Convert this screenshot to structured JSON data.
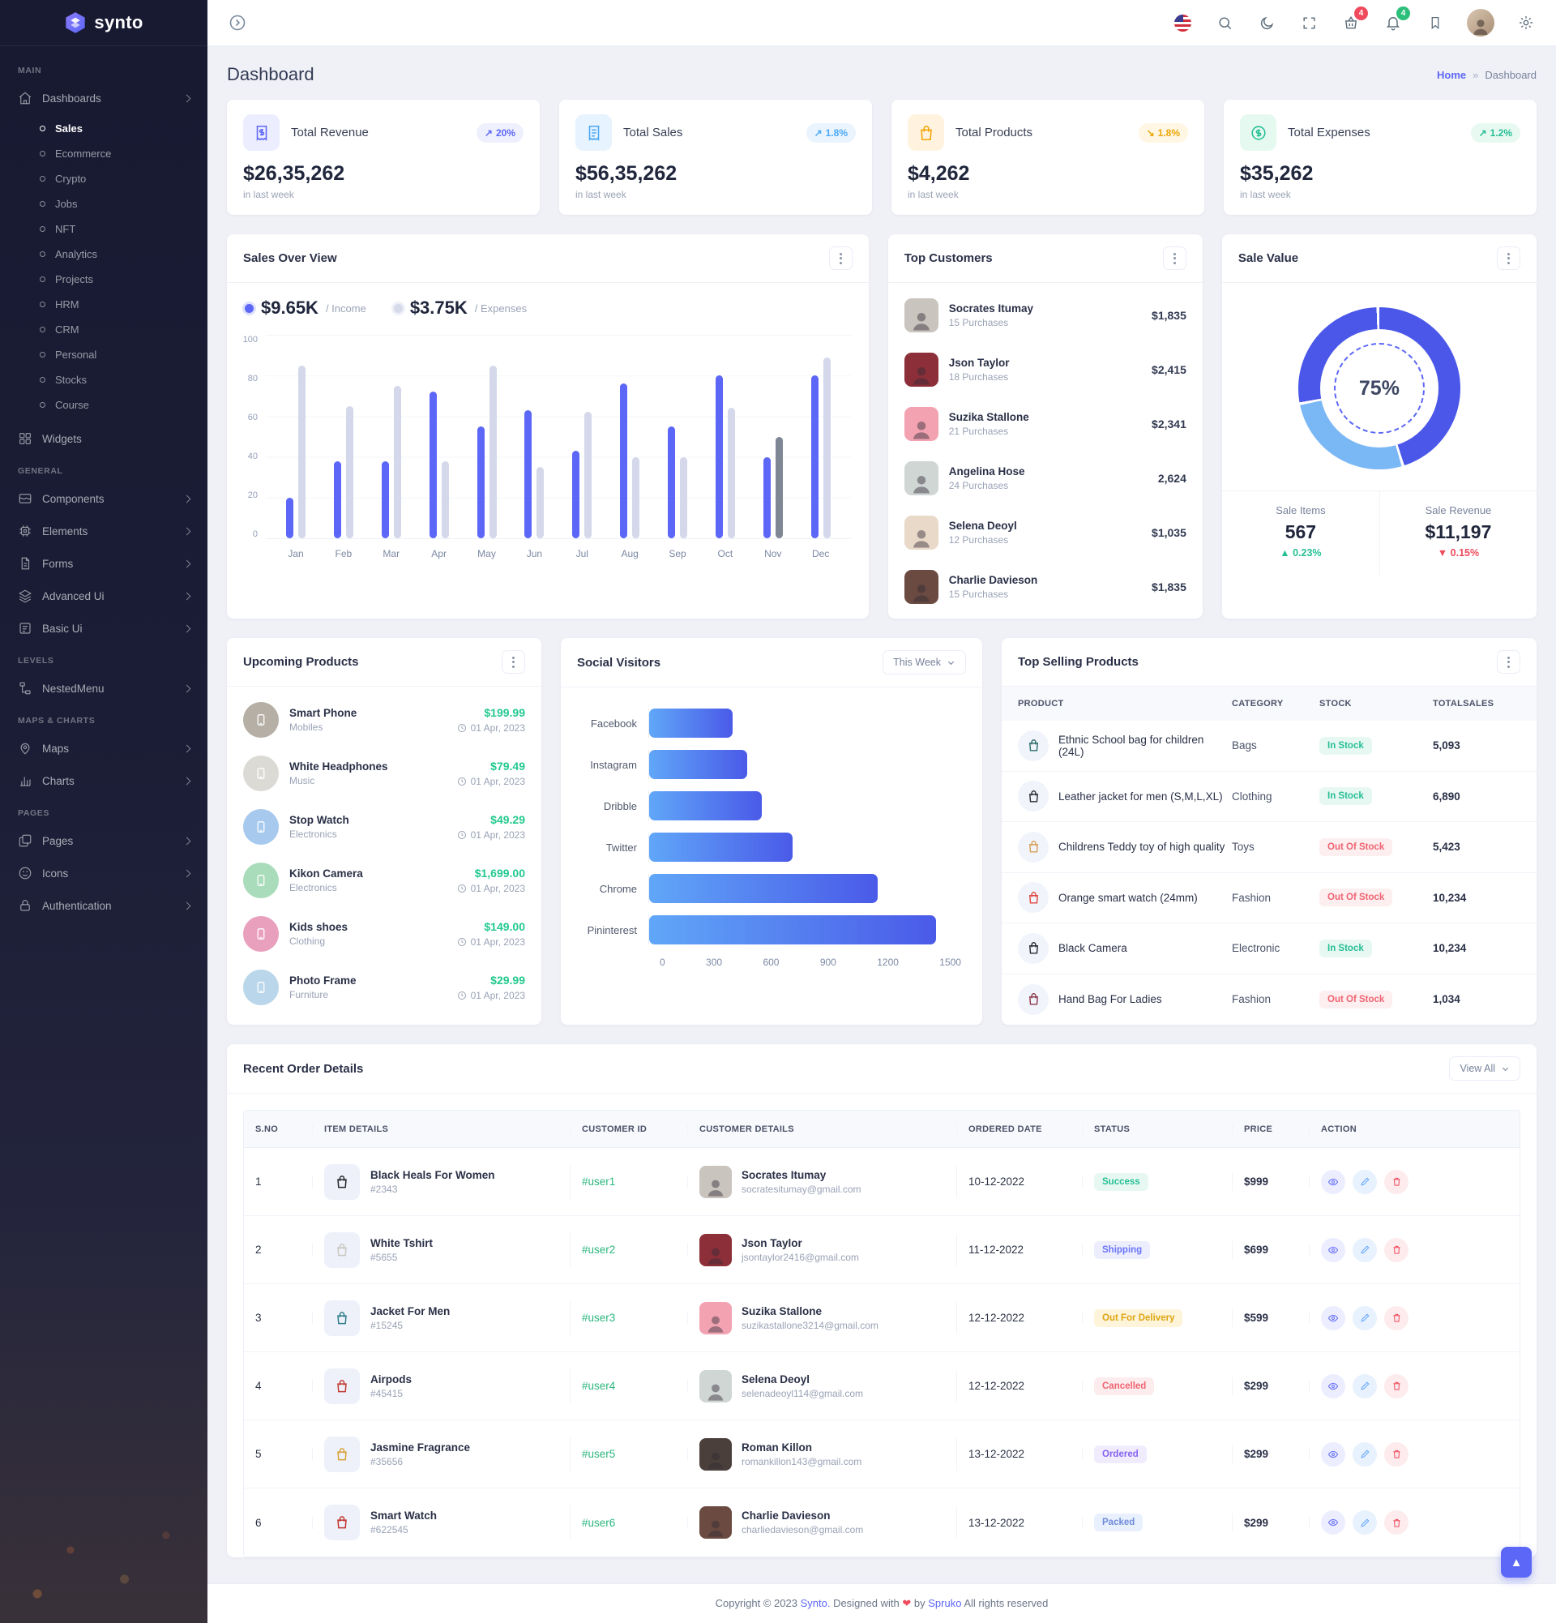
{
  "colors": {
    "primary": "#5c67f7",
    "secondary": "#49a8f5",
    "success": "#26bf94",
    "danger": "#ef4b5d",
    "warning": "#f5b849",
    "orange": "#f3a403"
  },
  "sidebar": {
    "logo": "synto",
    "sections": [
      {
        "label": "MAIN",
        "items": [
          {
            "label": "Dashboards",
            "icon": "home-icon",
            "children": [
              "Sales",
              "Ecommerce",
              "Crypto",
              "Jobs",
              "NFT",
              "Analytics",
              "Projects",
              "HRM",
              "CRM",
              "Personal",
              "Stocks",
              "Course"
            ],
            "active_child": "Sales"
          },
          {
            "label": "Widgets",
            "icon": "widgets-icon"
          }
        ]
      },
      {
        "label": "GENERAL",
        "items": [
          {
            "label": "Components",
            "icon": "components-icon"
          },
          {
            "label": "Elements",
            "icon": "elements-icon"
          },
          {
            "label": "Forms",
            "icon": "forms-icon"
          },
          {
            "label": "Advanced Ui",
            "icon": "advanced-ui-icon"
          },
          {
            "label": "Basic Ui",
            "icon": "basic-ui-icon"
          }
        ]
      },
      {
        "label": "LEVELS",
        "items": [
          {
            "label": "NestedMenu",
            "icon": "nested-menu-icon"
          }
        ]
      },
      {
        "label": "MAPS & CHARTS",
        "items": [
          {
            "label": "Maps",
            "icon": "map-pin-icon"
          },
          {
            "label": "Charts",
            "icon": "chart-icon"
          }
        ]
      },
      {
        "label": "PAGES",
        "items": [
          {
            "label": "Pages",
            "icon": "pages-icon"
          },
          {
            "label": "Icons",
            "icon": "icons-icon"
          },
          {
            "label": "Authentication",
            "icon": "lock-icon"
          }
        ]
      }
    ]
  },
  "header": {
    "cart_badge": "4",
    "notification_badge": "4"
  },
  "page": {
    "title": "Dashboard",
    "breadcrumb": {
      "home": "Home",
      "separator": "»",
      "current": "Dashboard"
    }
  },
  "stats": [
    {
      "title": "Total Revenue",
      "value": "$26,35,262",
      "period": "in last week",
      "change": "20%",
      "arrow": "↗"
    },
    {
      "title": "Total Sales",
      "value": "$56,35,262",
      "period": "in last week",
      "change": "1.8%",
      "arrow": "↗"
    },
    {
      "title": "Total Products",
      "value": "$4,262",
      "period": "in last week",
      "change": "1.8%",
      "arrow": "↘"
    },
    {
      "title": "Total Expenses",
      "value": "$35,262",
      "period": "in last week",
      "change": "1.2%",
      "arrow": "↗"
    }
  ],
  "sales_overview": {
    "title": "Sales Over View",
    "legend": [
      {
        "value": "$9.65K",
        "label": "/ Income"
      },
      {
        "value": "$3.75K",
        "label": "/ Expenses"
      }
    ],
    "chart_data": {
      "type": "bar",
      "categories": [
        "Jan",
        "Feb",
        "Mar",
        "Apr",
        "May",
        "Jun",
        "Jul",
        "Aug",
        "Sep",
        "Oct",
        "Nov",
        "Dec"
      ],
      "series": [
        {
          "name": "Income",
          "color": "#5c67f7",
          "values": [
            20,
            38,
            38,
            72,
            55,
            63,
            43,
            76,
            55,
            80,
            40,
            80
          ]
        },
        {
          "name": "Expenses",
          "color": "#d4d8ea",
          "values": [
            85,
            65,
            75,
            38,
            85,
            35,
            62,
            40,
            40,
            64,
            50,
            89
          ]
        }
      ],
      "ylim": [
        0,
        100
      ],
      "yticks": [
        0,
        20,
        40,
        60,
        80,
        100
      ],
      "highlight_index": 10,
      "highlight_color": "#7f8694"
    }
  },
  "top_customers": {
    "title": "Top Customers",
    "items": [
      {
        "name": "Socrates Itumay",
        "purchases": "15 Purchases",
        "amount": "$1,835",
        "avatar_color": "#c9c4bd"
      },
      {
        "name": "Json Taylor",
        "purchases": "18 Purchases",
        "amount": "$2,415",
        "avatar_color": "#8c2f39"
      },
      {
        "name": "Suzika Stallone",
        "purchases": "21 Purchases",
        "amount": "$2,341",
        "avatar_color": "#f2a2b1"
      },
      {
        "name": "Angelina Hose",
        "purchases": "24 Purchases",
        "amount": "2,624",
        "avatar_color": "#cfd6d4"
      },
      {
        "name": "Selena Deoyl",
        "purchases": "12 Purchases",
        "amount": "$1,035",
        "avatar_color": "#e8d9c8"
      },
      {
        "name": "Charlie Davieson",
        "purchases": "15 Purchases",
        "amount": "$1,835",
        "avatar_color": "#6b4a41"
      }
    ]
  },
  "sale_value": {
    "title": "Sale Value",
    "percent": "75%",
    "stats": [
      {
        "label": "Sale Items",
        "value": "567",
        "delta": "0.23%",
        "arrow": "▲",
        "direction": "up"
      },
      {
        "label": "Sale Revenue",
        "value": "$11,197",
        "delta": "0.15%",
        "arrow": "▼",
        "direction": "down"
      }
    ],
    "chart_data": {
      "type": "donut",
      "center_label": "75%",
      "segments": [
        {
          "name": "primary",
          "value": 75,
          "color": "#4a57e8"
        },
        {
          "name": "secondary",
          "value": 25,
          "color": "#79b7f5"
        }
      ]
    }
  },
  "upcoming_products": {
    "title": "Upcoming Products",
    "items": [
      {
        "name": "Smart Phone",
        "category": "Mobiles",
        "price": "$199.99",
        "date": "01 Apr, 2023",
        "thumb_color": "#b5afa6"
      },
      {
        "name": "White Headphones",
        "category": "Music",
        "price": "$79.49",
        "date": "01 Apr, 2023",
        "thumb_color": "#dcdad5"
      },
      {
        "name": "Stop Watch",
        "category": "Electronics",
        "price": "$49.29",
        "date": "01 Apr, 2023",
        "thumb_color": "#a7c9ee"
      },
      {
        "name": "Kikon Camera",
        "category": "Electronics",
        "price": "$1,699.00",
        "date": "01 Apr, 2023",
        "thumb_color": "#a9dcba"
      },
      {
        "name": "Kids shoes",
        "category": "Clothing",
        "price": "$149.00",
        "date": "01 Apr, 2023",
        "thumb_color": "#e9a0bd"
      },
      {
        "name": "Photo Frame",
        "category": "Furniture",
        "price": "$29.99",
        "date": "01 Apr, 2023",
        "thumb_color": "#b9d6ea"
      }
    ]
  },
  "social_visitors": {
    "title": "Social Visitors",
    "range_label": "This Week",
    "chart_data": {
      "type": "bar",
      "orientation": "horizontal",
      "categories": [
        "Facebook",
        "Instagram",
        "Dribble",
        "Twitter",
        "Chrome",
        "Pininterest"
      ],
      "values": [
        400,
        470,
        540,
        690,
        1100,
        1380
      ],
      "xlim": [
        0,
        1500
      ],
      "xticks": [
        0,
        300,
        600,
        900,
        1200,
        1500
      ]
    }
  },
  "top_selling": {
    "title": "Top Selling Products",
    "headers": [
      "PRODUCT",
      "CATEGORY",
      "STOCK",
      "TOTALSALES"
    ],
    "rows": [
      {
        "product": "Ethnic School bag for children (24L)",
        "category": "Bags",
        "stock": "In Stock",
        "total_sales": "5,093",
        "thumb_color": "#2e6f6e"
      },
      {
        "product": "Leather jacket for men (S,M,L,XL)",
        "category": "Clothing",
        "stock": "In Stock",
        "total_sales": "6,890",
        "thumb_color": "#2f2f35"
      },
      {
        "product": "Childrens Teddy toy of high quality",
        "category": "Toys",
        "stock": "Out Of Stock",
        "total_sales": "5,423",
        "thumb_color": "#d9a05b"
      },
      {
        "product": "Orange smart watch (24mm)",
        "category": "Fashion",
        "stock": "Out Of Stock",
        "total_sales": "10,234",
        "thumb_color": "#e0483f"
      },
      {
        "product": "Black Camera",
        "category": "Electronic",
        "stock": "In Stock",
        "total_sales": "10,234",
        "thumb_color": "#2b2b30"
      },
      {
        "product": "Hand Bag For Ladies",
        "category": "Fashion",
        "stock": "Out Of Stock",
        "total_sales": "1,034",
        "thumb_color": "#8c3a4b"
      }
    ]
  },
  "recent_orders": {
    "title": "Recent Order Details",
    "view_all_label": "View All",
    "headers": [
      "S.NO",
      "ITEM DETAILS",
      "CUSTOMER ID",
      "CUSTOMER DETAILS",
      "ORDERED DATE",
      "STATUS",
      "PRICE",
      "ACTION"
    ],
    "rows": [
      {
        "sno": "1",
        "item": "Black Heals For Women",
        "item_id": "#2343",
        "customer_id": "#user1",
        "customer": "Socrates Itumay",
        "email": "socratesitumay@gmail.com",
        "date": "10-12-2022",
        "status": "Success",
        "price": "$999",
        "thumb_color": "#26262b",
        "avatar_color": "#c9c4bd"
      },
      {
        "sno": "2",
        "item": "White Tshirt",
        "item_id": "#5655",
        "customer_id": "#user2",
        "customer": "Json Taylor",
        "email": "jsontaylor2416@gmail.com",
        "date": "11-12-2022",
        "status": "Shipping",
        "price": "$699",
        "thumb_color": "#c9c7c2",
        "avatar_color": "#8c2f39"
      },
      {
        "sno": "3",
        "item": "Jacket For Men",
        "item_id": "#15245",
        "customer_id": "#user3",
        "customer": "Suzika Stallone",
        "email": "suzikastallone3214@gmail.com",
        "date": "12-12-2022",
        "status": "Out For Delivery",
        "price": "$599",
        "thumb_color": "#2e7d8a",
        "avatar_color": "#f2a2b1"
      },
      {
        "sno": "4",
        "item": "Airpods",
        "item_id": "#45415",
        "customer_id": "#user4",
        "customer": "Selena Deoyl",
        "email": "selenadeoyl114@gmail.com",
        "date": "12-12-2022",
        "status": "Cancelled",
        "price": "$299",
        "thumb_color": "#c23b33",
        "avatar_color": "#cfd6d4"
      },
      {
        "sno": "5",
        "item": "Jasmine Fragrance",
        "item_id": "#35656",
        "customer_id": "#user5",
        "customer": "Roman Killon",
        "email": "romankillon143@gmail.com",
        "date": "13-12-2022",
        "status": "Ordered",
        "price": "$299",
        "thumb_color": "#d9a23a",
        "avatar_color": "#4a3f3a"
      },
      {
        "sno": "6",
        "item": "Smart Watch",
        "item_id": "#622545",
        "customer_id": "#user6",
        "customer": "Charlie Davieson",
        "email": "charliedavieson@gmail.com",
        "date": "13-12-2022",
        "status": "Packed",
        "price": "$299",
        "thumb_color": "#c2332f",
        "avatar_color": "#6b4a41"
      }
    ]
  },
  "footer": {
    "prefix": "Copyright © 2023",
    "brand": "Synto.",
    "middle": "Designed with",
    "heart": "❤",
    "by": "by",
    "designer": "Spruko",
    "suffix": "All rights reserved"
  }
}
